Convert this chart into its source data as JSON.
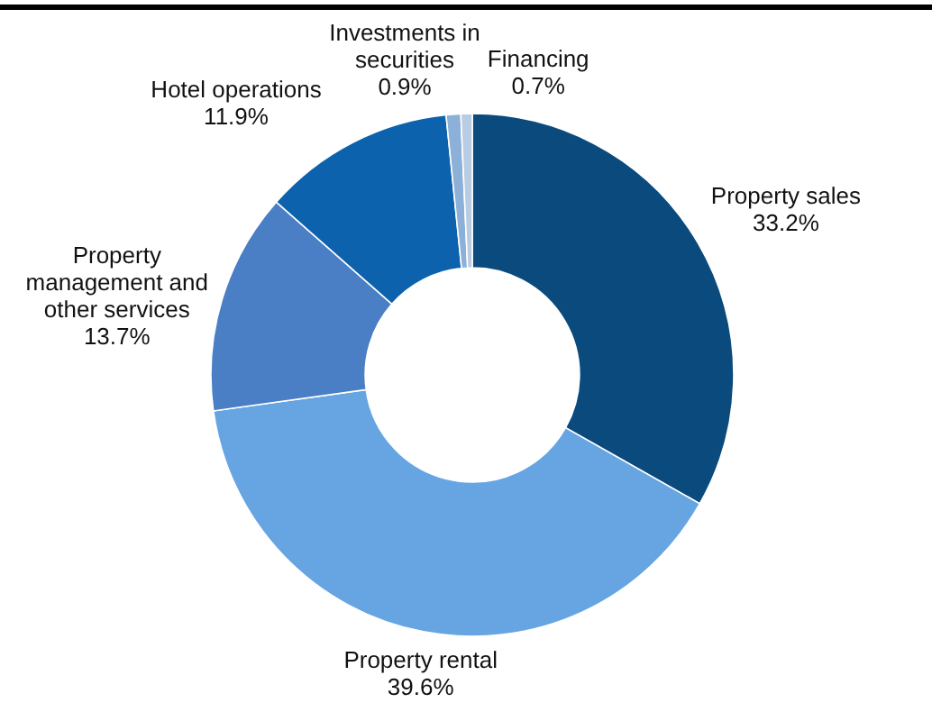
{
  "chart_data": {
    "type": "donut",
    "categories": [
      "Property sales",
      "Property rental",
      "Property management and other services",
      "Hotel operations",
      "Investments in securities",
      "Financing"
    ],
    "values": [
      33.2,
      39.6,
      13.7,
      11.9,
      0.9,
      0.7
    ],
    "value_labels": [
      "33.2%",
      "39.6%",
      "13.7%",
      "11.9%",
      "0.9%",
      "0.7%"
    ],
    "colors": [
      "#0a4a7d",
      "#66a5e2",
      "#4a7ec5",
      "#0d62ad",
      "#8db0d8",
      "#b8cce4"
    ]
  }
}
